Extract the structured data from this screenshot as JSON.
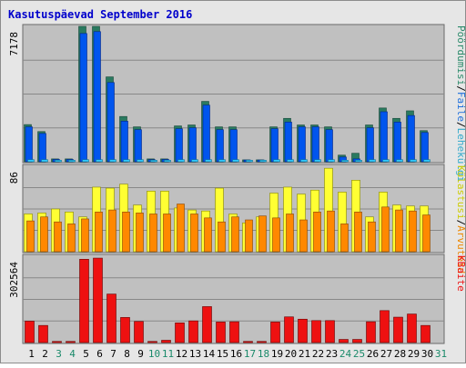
{
  "colors": {
    "background": "#e6e6e6",
    "frame": "#8c8c8c",
    "panel": "#c0c0c0",
    "gridline": "#888888",
    "title": "#0000cc",
    "day_weekday": "#000000",
    "day_weekend": "#1a8a6a",
    "pages_fill": "#0055ee",
    "pages_top": "#2a7a60",
    "hits_top": "#2a8a6a",
    "files_fill": "#33ccff",
    "visits_fill": "#ffff33",
    "sites_fill": "#ff8800",
    "kbytes_fill": "#ee1111",
    "label_hits": "#2a8a6a",
    "label_files": "#1f6fdc",
    "label_pages": "#33aacc",
    "label_visits": "#cccc00",
    "label_sites": "#ee8800",
    "label_kbytes": "#ee1111",
    "separator": "#000000"
  },
  "chart_data": {
    "type": "bar",
    "title": "Kasutuspäevad September 2016",
    "categories": [
      "1",
      "2",
      "3",
      "4",
      "5",
      "6",
      "7",
      "8",
      "9",
      "10",
      "11",
      "12",
      "13",
      "14",
      "15",
      "16",
      "17",
      "18",
      "19",
      "20",
      "21",
      "22",
      "23",
      "24",
      "25",
      "26",
      "27",
      "28",
      "29",
      "30",
      "31"
    ],
    "weekend_days": [
      "3",
      "4",
      "10",
      "11",
      "17",
      "18",
      "24",
      "25",
      "31"
    ],
    "panels": [
      {
        "id": "traffic",
        "max_label": "7178",
        "ymax": 7178,
        "legend": [
          "Pöördumisi",
          "/",
          "Faile",
          "/",
          "Lehekülgi"
        ],
        "series": [
          {
            "name": "Pöördumisi",
            "role": "hits",
            "values": [
              1970,
              1600,
              150,
              150,
              7178,
              7178,
              4500,
              2400,
              1850,
              150,
              150,
              1900,
              1950,
              3200,
              1850,
              1850,
              100,
              100,
              1850,
              2300,
              1950,
              1950,
              1850,
              350,
              450,
              1950,
              2850,
              2300,
              2700,
              1650,
              0
            ]
          },
          {
            "name": "Faile",
            "role": "files",
            "values": [
              1850,
              1500,
              120,
              120,
              6800,
              6900,
              4200,
              2150,
              1700,
              110,
              120,
              1750,
              1800,
              3000,
              1700,
              1700,
              90,
              90,
              1750,
              2100,
              1850,
              1850,
              1700,
              250,
              150,
              1800,
              2650,
              2100,
              2450,
              1550,
              0
            ]
          },
          {
            "name": "Lehekülgi",
            "role": "pages",
            "values": [
              110,
              110,
              80,
              80,
              110,
              110,
              110,
              110,
              110,
              80,
              80,
              110,
              110,
              110,
              110,
              110,
              80,
              80,
              110,
              110,
              110,
              110,
              110,
              80,
              80,
              110,
              110,
              110,
              110,
              110,
              0
            ]
          }
        ]
      },
      {
        "id": "visits",
        "max_label": "86",
        "ymax": 86,
        "legend": [
          "Külastusi",
          "/",
          "Arvuteid"
        ],
        "series": [
          {
            "name": "Külastusi",
            "role": "visits",
            "values": [
              38,
              39,
              43,
              40,
              35,
              65,
              64,
              68,
              47,
              61,
              61,
              44,
              42,
              41,
              64,
              38,
              29,
              35,
              59,
              65,
              58,
              62,
              84,
              60,
              72,
              35,
              60,
              47,
              46,
              46,
              0
            ]
          },
          {
            "name": "Arvuteid",
            "role": "sites",
            "values": [
              31,
              35,
              30,
              28,
              33,
              40,
              42,
              40,
              39,
              38,
              38,
              48,
              38,
              34,
              30,
              35,
              32,
              36,
              34,
              38,
              32,
              40,
              41,
              28,
              40,
              30,
              45,
              42,
              41,
              37,
              0
            ]
          }
        ]
      },
      {
        "id": "kbytes",
        "max_label": "302564",
        "ymax": 302564,
        "legend": [
          "KBaite"
        ],
        "series": [
          {
            "name": "KBaite",
            "role": "kbytes",
            "values": [
              75000,
              60000,
              4000,
              4000,
              292000,
              296000,
              170000,
              88000,
              74000,
              4000,
              8000,
              69000,
              76000,
              126000,
              72000,
              73000,
              4000,
              4000,
              72000,
              90000,
              82000,
              77000,
              77000,
              11000,
              11000,
              73000,
              112000,
              89000,
              100000,
              60000,
              0
            ]
          }
        ]
      }
    ]
  }
}
